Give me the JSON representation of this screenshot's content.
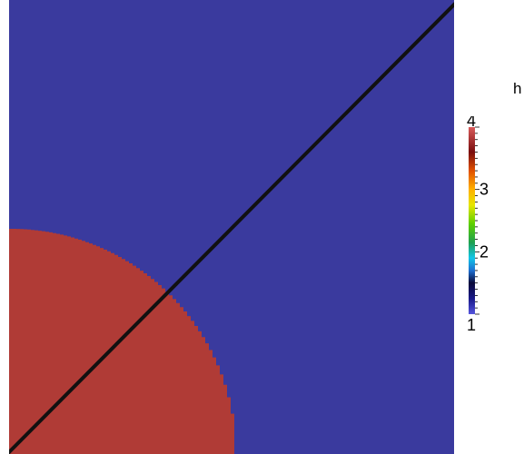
{
  "field": {
    "name": "h",
    "background_value": 1,
    "disk_value": 4,
    "background_color": "#3A3A9E",
    "disk_color": "#B03B36",
    "line_color": "#111111"
  },
  "colorbar": {
    "title": "h",
    "min": 1,
    "max": 4,
    "tick_labels": [
      "4",
      "3",
      "2",
      "1"
    ],
    "tick_values": [
      4,
      3,
      2,
      1
    ],
    "colormap": "jet-like",
    "stops": [
      {
        "value": 1.0,
        "color": "#5555DD"
      },
      {
        "value": 1.25,
        "color": "#1A1A8A"
      },
      {
        "value": 1.5,
        "color": "#0A0A3A"
      },
      {
        "value": 1.7,
        "color": "#1E6FD0"
      },
      {
        "value": 1.9,
        "color": "#11C5E8"
      },
      {
        "value": 2.15,
        "color": "#1FA050"
      },
      {
        "value": 2.45,
        "color": "#5DCF00"
      },
      {
        "value": 2.75,
        "color": "#E6E600"
      },
      {
        "value": 3.0,
        "color": "#FFB000"
      },
      {
        "value": 3.3,
        "color": "#E05000"
      },
      {
        "value": 3.6,
        "color": "#7A0D0D"
      },
      {
        "value": 4.0,
        "color": "#D85A5A"
      }
    ]
  }
}
